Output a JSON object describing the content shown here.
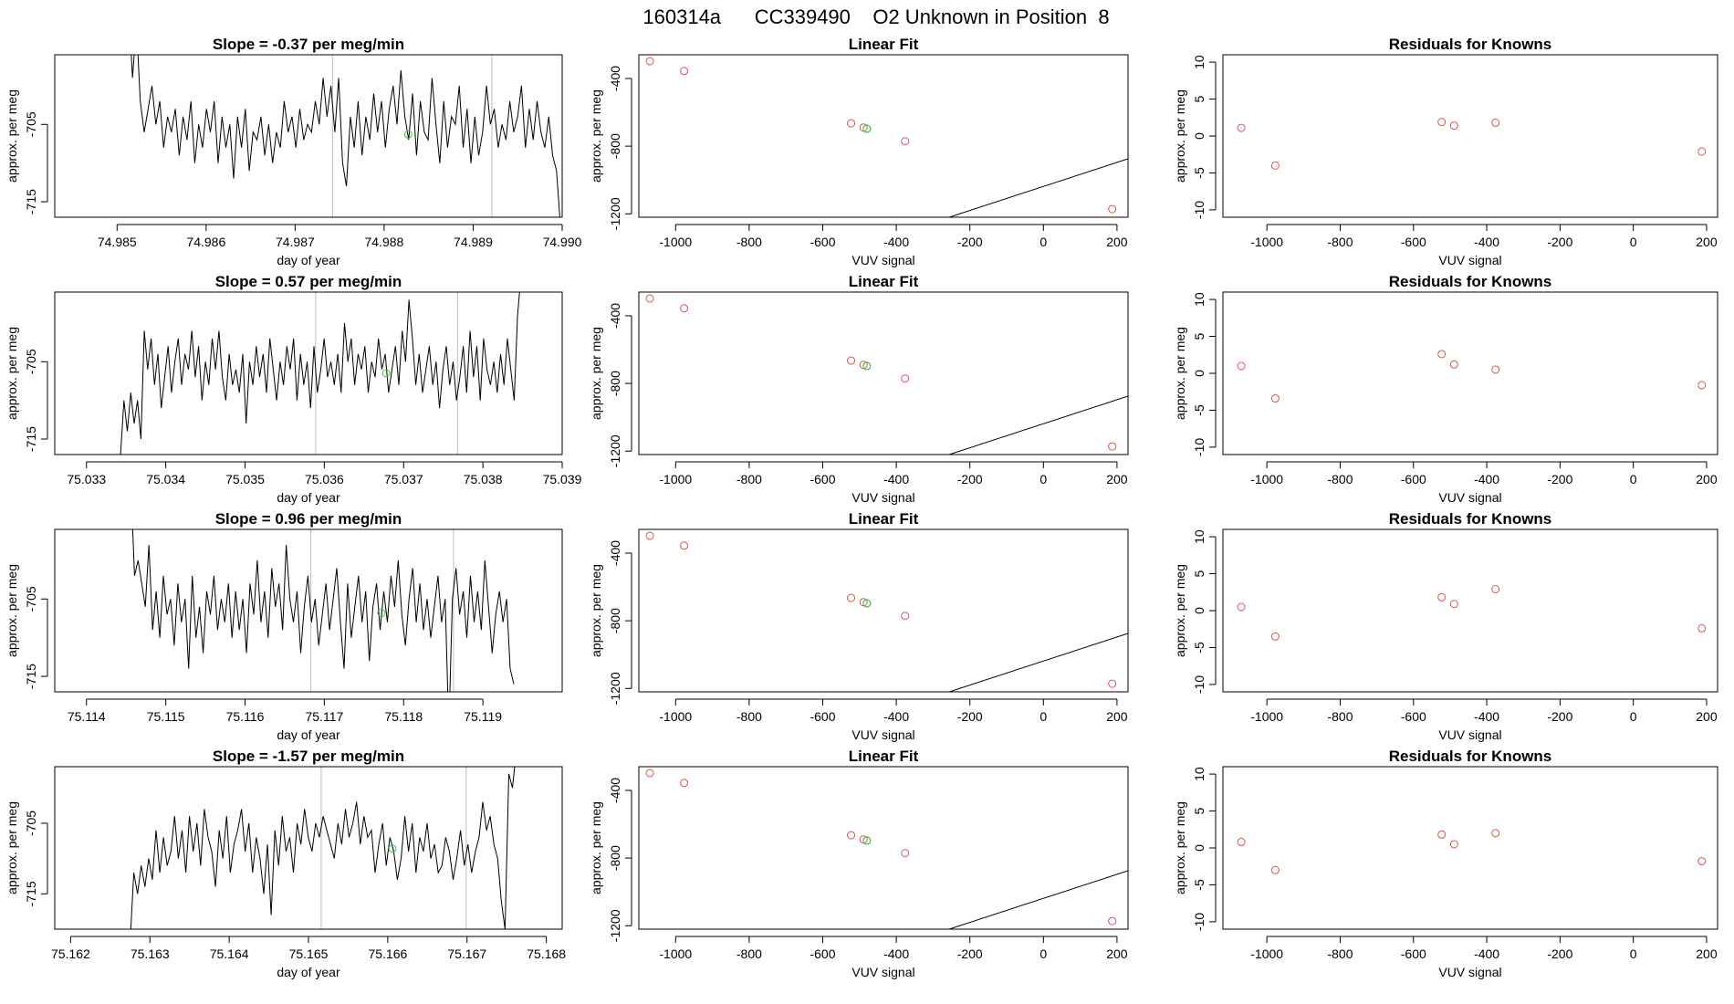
{
  "page_title": "160314a      CC339490    O2 Unknown in Position  8",
  "colors": {
    "known_point": "#d9534f",
    "unknown_point": "#3ec23e",
    "line": "#000000",
    "marker_line": "#bdbdbd"
  },
  "chart_data": [
    {
      "type": "line",
      "title": "Slope =  -0.37  per meg/min",
      "xlabel": "day of year",
      "ylabel": "approx. per meg",
      "xlim": [
        74.9843,
        74.99
      ],
      "ylim": [
        -717,
        -696
      ],
      "xticks": [
        74.985,
        74.986,
        74.987,
        74.988,
        74.989,
        74.99
      ],
      "xtick_labels": [
        "74.985",
        "74.986",
        "74.987",
        "74.988",
        "74.989",
        "74.990"
      ],
      "yticks": [
        -705,
        -715
      ],
      "ytick_labels": [
        "-705",
        "-715"
      ],
      "x_start": 74.98513,
      "x_end": 74.98998,
      "y_start": -690,
      "series": [
        -690,
        -699,
        -692,
        -702,
        -706,
        -703,
        -700,
        -705,
        -702,
        -708,
        -704,
        -706,
        -703,
        -709,
        -704,
        -707,
        -702,
        -710,
        -705,
        -708,
        -703,
        -706,
        -702,
        -710,
        -704,
        -708,
        -705,
        -712,
        -704,
        -708,
        -703,
        -711,
        -706,
        -707,
        -704,
        -709,
        -705,
        -710,
        -706,
        -708,
        -702,
        -706,
        -704,
        -708,
        -703,
        -707,
        -705,
        -706,
        -702,
        -705,
        -699,
        -704,
        -700,
        -706,
        -699,
        -710,
        -713,
        -704,
        -708,
        -702,
        -709,
        -704,
        -707,
        -701,
        -706,
        -702,
        -708,
        -703,
        -700,
        -705,
        -698,
        -704,
        -707,
        -701,
        -709,
        -702,
        -706,
        -707,
        -699,
        -705,
        -710,
        -702,
        -708,
        -704,
        -705,
        -700,
        -708,
        -703,
        -710,
        -704,
        -709,
        -706,
        -700,
        -705,
        -703,
        -708,
        -705,
        -707,
        -702,
        -706,
        -704,
        -700,
        -708,
        -703,
        -707,
        -702,
        -706,
        -708,
        -704,
        -709,
        -711,
        -718
      ],
      "vlines": [
        74.98742,
        74.98921
      ],
      "point": {
        "x": 74.98827,
        "y": -706.3
      },
      "point_label": "unknown average"
    },
    {
      "type": "scatter",
      "title": "Linear Fit",
      "xlabel": "VUV signal",
      "ylabel": "approx. per meg",
      "xlim": [
        -1100,
        230
      ],
      "ylim": [
        -1220,
        -260
      ],
      "xticks": [
        -1000,
        -800,
        -600,
        -400,
        -200,
        0,
        200
      ],
      "xtick_labels": [
        "-1000",
        "-800",
        "-600",
        "-400",
        "-200",
        "0",
        "200"
      ],
      "yticks": [
        -400,
        -800,
        -1200
      ],
      "ytick_labels": [
        "-400",
        "-800",
        "-1200"
      ],
      "fit": {
        "slope": 0.7105,
        "intercept": -1038
      },
      "points": [
        {
          "x": -1070,
          "y": -298
        },
        {
          "x": -977,
          "y": -356
        },
        {
          "x": -523,
          "y": -665
        },
        {
          "x": -489,
          "y": -690
        },
        {
          "x": -376,
          "y": -771
        },
        {
          "x": 187,
          "y": -1172
        }
      ],
      "unknown": {
        "x": -480,
        "y": -697
      }
    },
    {
      "type": "scatter",
      "title": "Residuals for Knowns",
      "xlabel": "VUV signal",
      "ylabel": "approx. per meg",
      "xlim": [
        -1120,
        230
      ],
      "ylim": [
        -11,
        11
      ],
      "xticks": [
        -1000,
        -800,
        -600,
        -400,
        -200,
        0,
        200
      ],
      "xtick_labels": [
        "-1000",
        "-800",
        "-600",
        "-400",
        "-200",
        "0",
        "200"
      ],
      "yticks": [
        -10,
        -5,
        0,
        5,
        10
      ],
      "ytick_labels": [
        "-10",
        "-5",
        "0",
        "5",
        "10"
      ],
      "points": [
        {
          "x": -1070,
          "y": 1.1
        },
        {
          "x": -977,
          "y": -4.0
        },
        {
          "x": -523,
          "y": 1.9
        },
        {
          "x": -489,
          "y": 1.4
        },
        {
          "x": -376,
          "y": 1.8
        },
        {
          "x": 187,
          "y": -2.1
        }
      ]
    },
    {
      "type": "line",
      "title": "Slope =  0.57  per meg/min",
      "xlabel": "day of year",
      "ylabel": "approx. per meg",
      "xlim": [
        75.0326,
        75.039
      ],
      "ylim": [
        -717,
        -696
      ],
      "xticks": [
        75.033,
        75.034,
        75.035,
        75.036,
        75.037,
        75.038,
        75.039
      ],
      "xtick_labels": [
        "75.033",
        "75.034",
        "75.035",
        "75.036",
        "75.037",
        "75.038",
        "75.039"
      ],
      "yticks": [
        -705,
        -715
      ],
      "ytick_labels": [
        "-705",
        "-715"
      ],
      "x_start": 75.03343,
      "x_end": 75.03848,
      "y_start": -717,
      "series": [
        -717,
        -710,
        -714,
        -709,
        -713,
        -710,
        -715,
        -701,
        -706,
        -702,
        -708,
        -704,
        -711,
        -707,
        -703,
        -709,
        -705,
        -702,
        -708,
        -704,
        -706,
        -701,
        -707,
        -703,
        -710,
        -705,
        -708,
        -702,
        -706,
        -701,
        -707,
        -710,
        -704,
        -708,
        -706,
        -709,
        -704,
        -713,
        -705,
        -708,
        -703,
        -707,
        -704,
        -709,
        -702,
        -706,
        -710,
        -705,
        -708,
        -703,
        -706,
        -702,
        -710,
        -704,
        -708,
        -705,
        -711,
        -703,
        -709,
        -706,
        -702,
        -707,
        -705,
        -708,
        -704,
        -709,
        -700,
        -705,
        -702,
        -708,
        -704,
        -706,
        -703,
        -709,
        -705,
        -707,
        -702,
        -706,
        -704,
        -709,
        -706,
        -703,
        -708,
        -701,
        -705,
        -697,
        -702,
        -708,
        -704,
        -709,
        -706,
        -703,
        -708,
        -705,
        -711,
        -706,
        -703,
        -708,
        -705,
        -710,
        -707,
        -703,
        -709,
        -701,
        -707,
        -703,
        -710,
        -702,
        -706,
        -708,
        -705,
        -709,
        -704,
        -708,
        -702,
        -706,
        -710,
        -699,
        -694
      ],
      "vlines": [
        75.03589,
        75.03768
      ],
      "point": {
        "x": 75.03678,
        "y": -706.5
      },
      "point_label": "unknown average"
    },
    {
      "type": "scatter",
      "title": "Linear Fit",
      "xlabel": "VUV signal",
      "ylabel": "approx. per meg",
      "xlim": [
        -1100,
        230
      ],
      "ylim": [
        -1220,
        -260
      ],
      "xticks": [
        -1000,
        -800,
        -600,
        -400,
        -200,
        0,
        200
      ],
      "xtick_labels": [
        "-1000",
        "-800",
        "-600",
        "-400",
        "-200",
        "0",
        "200"
      ],
      "yticks": [
        -400,
        -800,
        -1200
      ],
      "ytick_labels": [
        "-400",
        "-800",
        "-1200"
      ],
      "fit": {
        "slope": 0.7105,
        "intercept": -1038
      },
      "points": [
        {
          "x": -1070,
          "y": -298
        },
        {
          "x": -977,
          "y": -356
        },
        {
          "x": -523,
          "y": -665
        },
        {
          "x": -489,
          "y": -690
        },
        {
          "x": -376,
          "y": -771
        },
        {
          "x": 187,
          "y": -1172
        }
      ],
      "unknown": {
        "x": -480,
        "y": -697
      }
    },
    {
      "type": "scatter",
      "title": "Residuals for Knowns",
      "xlabel": "VUV signal",
      "ylabel": "approx. per meg",
      "xlim": [
        -1120,
        230
      ],
      "ylim": [
        -11,
        11
      ],
      "xticks": [
        -1000,
        -800,
        -600,
        -400,
        -200,
        0,
        200
      ],
      "xtick_labels": [
        "-1000",
        "-800",
        "-600",
        "-400",
        "-200",
        "0",
        "200"
      ],
      "yticks": [
        -10,
        -5,
        0,
        5,
        10
      ],
      "ytick_labels": [
        "-10",
        "-5",
        "0",
        "5",
        "10"
      ],
      "points": [
        {
          "x": -1070,
          "y": 1.0
        },
        {
          "x": -977,
          "y": -3.4
        },
        {
          "x": -523,
          "y": 2.6
        },
        {
          "x": -489,
          "y": 1.2
        },
        {
          "x": -376,
          "y": 0.5
        },
        {
          "x": 187,
          "y": -1.6
        }
      ]
    },
    {
      "type": "line",
      "title": "Slope =  0.96  per meg/min",
      "xlabel": "day of year",
      "ylabel": "approx. per meg",
      "xlim": [
        75.1136,
        75.12
      ],
      "ylim": [
        -717,
        -696
      ],
      "xticks": [
        75.114,
        75.115,
        75.116,
        75.117,
        75.118,
        75.119
      ],
      "xtick_labels": [
        "75.114",
        "75.115",
        "75.116",
        "75.117",
        "75.118",
        "75.119"
      ],
      "yticks": [
        -705,
        -715
      ],
      "ytick_labels": [
        "-705",
        "-715"
      ],
      "x_start": 75.11456,
      "x_end": 75.11939,
      "y_start": -690,
      "series": [
        -690,
        -702,
        -700,
        -703,
        -706,
        -698,
        -709,
        -704,
        -710,
        -702,
        -707,
        -705,
        -711,
        -703,
        -708,
        -705,
        -714,
        -702,
        -710,
        -706,
        -712,
        -704,
        -707,
        -702,
        -709,
        -705,
        -708,
        -703,
        -710,
        -704,
        -709,
        -705,
        -712,
        -703,
        -707,
        -700,
        -708,
        -704,
        -710,
        -701,
        -706,
        -703,
        -709,
        -698,
        -705,
        -708,
        -704,
        -712,
        -706,
        -702,
        -708,
        -705,
        -711,
        -707,
        -703,
        -709,
        -705,
        -701,
        -708,
        -714,
        -703,
        -710,
        -706,
        -702,
        -708,
        -704,
        -713,
        -706,
        -703,
        -709,
        -704,
        -708,
        -702,
        -706,
        -700,
        -707,
        -711,
        -705,
        -701,
        -708,
        -703,
        -709,
        -705,
        -710,
        -706,
        -702,
        -708,
        -705,
        -722,
        -705,
        -701,
        -707,
        -704,
        -710,
        -702,
        -708,
        -704,
        -709,
        -700,
        -706,
        -712,
        -707,
        -704,
        -708,
        -705,
        -714,
        -716
      ],
      "vlines": [
        75.11683,
        75.11863
      ],
      "point": {
        "x": 75.11772,
        "y": -706.8
      },
      "point_label": "unknown average"
    },
    {
      "type": "scatter",
      "title": "Linear Fit",
      "xlabel": "VUV signal",
      "ylabel": "approx. per meg",
      "xlim": [
        -1100,
        230
      ],
      "ylim": [
        -1220,
        -260
      ],
      "xticks": [
        -1000,
        -800,
        -600,
        -400,
        -200,
        0,
        200
      ],
      "xtick_labels": [
        "-1000",
        "-800",
        "-600",
        "-400",
        "-200",
        "0",
        "200"
      ],
      "yticks": [
        -400,
        -800,
        -1200
      ],
      "ytick_labels": [
        "-400",
        "-800",
        "-1200"
      ],
      "fit": {
        "slope": 0.7105,
        "intercept": -1038
      },
      "points": [
        {
          "x": -1070,
          "y": -298
        },
        {
          "x": -977,
          "y": -356
        },
        {
          "x": -523,
          "y": -665
        },
        {
          "x": -489,
          "y": -690
        },
        {
          "x": -376,
          "y": -771
        },
        {
          "x": 187,
          "y": -1172
        }
      ],
      "unknown": {
        "x": -480,
        "y": -697
      }
    },
    {
      "type": "scatter",
      "title": "Residuals for Knowns",
      "xlabel": "VUV signal",
      "ylabel": "approx. per meg",
      "xlim": [
        -1120,
        230
      ],
      "ylim": [
        -11,
        11
      ],
      "xticks": [
        -1000,
        -800,
        -600,
        -400,
        -200,
        0,
        200
      ],
      "xtick_labels": [
        "-1000",
        "-800",
        "-600",
        "-400",
        "-200",
        "0",
        "200"
      ],
      "yticks": [
        -10,
        -5,
        0,
        5,
        10
      ],
      "ytick_labels": [
        "-10",
        "-5",
        "0",
        "5",
        "10"
      ],
      "points": [
        {
          "x": -1070,
          "y": 0.5
        },
        {
          "x": -977,
          "y": -3.5
        },
        {
          "x": -523,
          "y": 1.8
        },
        {
          "x": -489,
          "y": 0.9
        },
        {
          "x": -376,
          "y": 2.9
        },
        {
          "x": 187,
          "y": -2.4
        }
      ]
    },
    {
      "type": "line",
      "title": "Slope =  -1.57  per meg/min",
      "xlabel": "day of year",
      "ylabel": "approx. per meg",
      "xlim": [
        75.1618,
        75.1682
      ],
      "ylim": [
        -720,
        -697
      ],
      "xticks": [
        75.162,
        75.163,
        75.164,
        75.165,
        75.166,
        75.167,
        75.168
      ],
      "xtick_labels": [
        "75.162",
        "75.163",
        "75.164",
        "75.165",
        "75.166",
        "75.167",
        "75.168"
      ],
      "yticks": [
        -705,
        -715
      ],
      "ytick_labels": [
        "-705",
        "-715"
      ],
      "x_start": 75.16275,
      "x_end": 75.16762,
      "y_start": -722,
      "series": [
        -722,
        -712,
        -715,
        -711,
        -714,
        -710,
        -713,
        -706,
        -712,
        -707,
        -711,
        -709,
        -704,
        -710,
        -706,
        -712,
        -704,
        -709,
        -705,
        -711,
        -703,
        -707,
        -709,
        -714,
        -706,
        -710,
        -704,
        -712,
        -708,
        -706,
        -703,
        -709,
        -705,
        -712,
        -707,
        -710,
        -715,
        -708,
        -718,
        -706,
        -711,
        -704,
        -709,
        -707,
        -712,
        -705,
        -708,
        -703,
        -707,
        -709,
        -705,
        -707,
        -704,
        -706,
        -708,
        -710,
        -705,
        -708,
        -703,
        -707,
        -705,
        -702,
        -708,
        -704,
        -707,
        -706,
        -712,
        -708,
        -705,
        -711,
        -707,
        -709,
        -713,
        -710,
        -704,
        -709,
        -705,
        -712,
        -707,
        -709,
        -705,
        -710,
        -708,
        -712,
        -711,
        -707,
        -709,
        -713,
        -710,
        -706,
        -711,
        -708,
        -712,
        -709,
        -707,
        -702,
        -706,
        -704,
        -708,
        -710,
        -716,
        -720,
        -698,
        -700,
        -695
      ],
      "vlines": [
        75.16516,
        75.16699
      ],
      "point": {
        "x": 75.16606,
        "y": -708.6
      },
      "point_label": "unknown average"
    },
    {
      "type": "scatter",
      "title": "Linear Fit",
      "xlabel": "VUV signal",
      "ylabel": "approx. per meg",
      "xlim": [
        -1100,
        230
      ],
      "ylim": [
        -1220,
        -260
      ],
      "xticks": [
        -1000,
        -800,
        -600,
        -400,
        -200,
        0,
        200
      ],
      "xtick_labels": [
        "-1000",
        "-800",
        "-600",
        "-400",
        "-200",
        "0",
        "200"
      ],
      "yticks": [
        -400,
        -800,
        -1200
      ],
      "ytick_labels": [
        "-400",
        "-800",
        "-1200"
      ],
      "fit": {
        "slope": 0.7105,
        "intercept": -1038
      },
      "points": [
        {
          "x": -1070,
          "y": -298
        },
        {
          "x": -977,
          "y": -356
        },
        {
          "x": -523,
          "y": -665
        },
        {
          "x": -489,
          "y": -690
        },
        {
          "x": -376,
          "y": -771
        },
        {
          "x": 187,
          "y": -1172
        }
      ],
      "unknown": {
        "x": -480,
        "y": -697
      }
    },
    {
      "type": "scatter",
      "title": "Residuals for Knowns",
      "xlabel": "VUV signal",
      "ylabel": "approx. per meg",
      "xlim": [
        -1120,
        230
      ],
      "ylim": [
        -11,
        11
      ],
      "xticks": [
        -1000,
        -800,
        -600,
        -400,
        -200,
        0,
        200
      ],
      "xtick_labels": [
        "-1000",
        "-800",
        "-600",
        "-400",
        "-200",
        "0",
        "200"
      ],
      "yticks": [
        -10,
        -5,
        0,
        5,
        10
      ],
      "ytick_labels": [
        "-10",
        "-5",
        "0",
        "5",
        "10"
      ],
      "points": [
        {
          "x": -1070,
          "y": 0.8
        },
        {
          "x": -977,
          "y": -3.0
        },
        {
          "x": -523,
          "y": 1.8
        },
        {
          "x": -489,
          "y": 0.5
        },
        {
          "x": -376,
          "y": 2.0
        },
        {
          "x": 187,
          "y": -1.8
        }
      ]
    }
  ]
}
